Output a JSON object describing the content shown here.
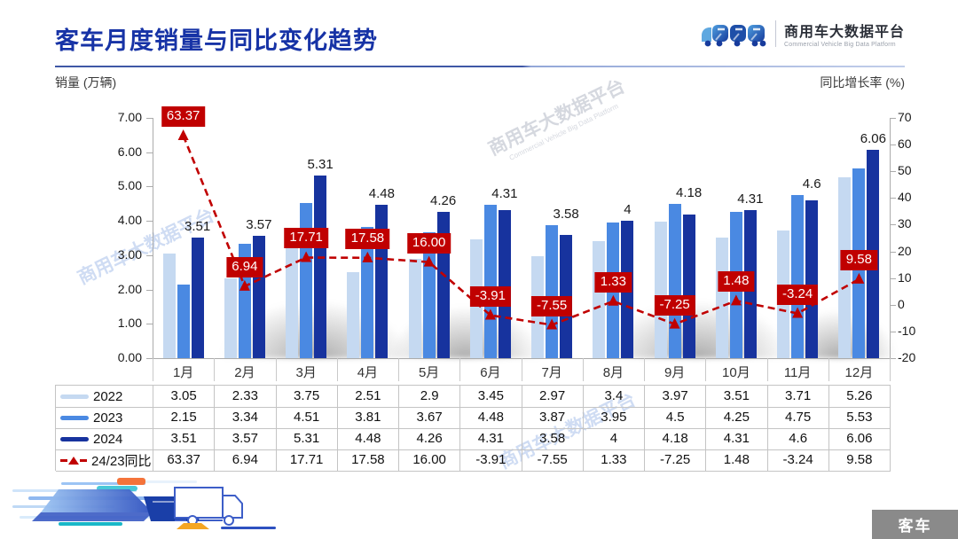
{
  "header": {
    "title": "客车月度销量与同比变化趋势",
    "logo": {
      "brand_cn": "商用车大数据平台",
      "brand_en": "Commercial Vehicle Big Data Platform"
    }
  },
  "axes": {
    "left_caption": "销量 (万辆)",
    "right_caption": "同比增长率 (%)"
  },
  "watermark": {
    "text": "商用车大数据平台",
    "text_en": "Commercial Vehicle Big Data Platform"
  },
  "chart_data": {
    "type": "bar+line",
    "title": "客车月度销量与同比变化趋势",
    "categories": [
      "1月",
      "2月",
      "3月",
      "4月",
      "5月",
      "6月",
      "7月",
      "8月",
      "9月",
      "10月",
      "11月",
      "12月"
    ],
    "grid": false,
    "legend_position": "table-left",
    "left_axis": {
      "label": "销量 (万辆)",
      "min": 0,
      "max": 7,
      "ticks": [
        "7.00",
        "6.00",
        "5.00",
        "4.00",
        "3.00",
        "2.00",
        "1.00",
        "0.00"
      ]
    },
    "right_axis": {
      "label": "同比增长率 (%)",
      "min": -20,
      "max": 70,
      "ticks": [
        "70",
        "60",
        "50",
        "40",
        "30",
        "20",
        "10",
        "0",
        "-10",
        "-20"
      ]
    },
    "series": [
      {
        "name": "2022",
        "type": "bar",
        "color": "#C5D9F1",
        "show_labels": false,
        "values": [
          3.05,
          2.33,
          3.75,
          2.51,
          2.9,
          3.45,
          2.97,
          3.4,
          3.97,
          3.51,
          3.71,
          5.26
        ],
        "display": [
          "3.05",
          "2.33",
          "3.75",
          "2.51",
          "2.9",
          "3.45",
          "2.97",
          "3.4",
          "3.97",
          "3.51",
          "3.71",
          "5.26"
        ]
      },
      {
        "name": "2023",
        "type": "bar",
        "color": "#4A89E2",
        "show_labels": false,
        "values": [
          2.15,
          3.34,
          4.51,
          3.81,
          3.67,
          4.48,
          3.87,
          3.95,
          4.5,
          4.25,
          4.75,
          5.53
        ],
        "display": [
          "2.15",
          "3.34",
          "4.51",
          "3.81",
          "3.67",
          "4.48",
          "3.87",
          "3.95",
          "4.5",
          "4.25",
          "4.75",
          "5.53"
        ]
      },
      {
        "name": "2024",
        "type": "bar",
        "color": "#17339E",
        "show_labels": true,
        "values": [
          3.51,
          3.57,
          5.31,
          4.48,
          4.26,
          4.31,
          3.58,
          4,
          4.18,
          4.31,
          4.6,
          6.06
        ],
        "display": [
          "3.51",
          "3.57",
          "5.31",
          "4.48",
          "4.26",
          "4.31",
          "3.58",
          "4",
          "4.18",
          "4.31",
          "4.6",
          "6.06"
        ]
      },
      {
        "name": "24/23同比",
        "type": "line",
        "axis": "right",
        "color": "#C00000",
        "show_labels": true,
        "values": [
          63.37,
          6.94,
          17.71,
          17.58,
          16.0,
          -3.91,
          -7.55,
          1.33,
          -7.25,
          1.48,
          -3.24,
          9.58
        ],
        "display": [
          "63.37",
          "6.94",
          "17.71",
          "17.58",
          "16.00",
          "-3.91",
          "-7.55",
          "1.33",
          "-7.25",
          "1.48",
          "-3.24",
          "9.58"
        ]
      }
    ]
  },
  "footer": {
    "corner_tag": "客车"
  }
}
